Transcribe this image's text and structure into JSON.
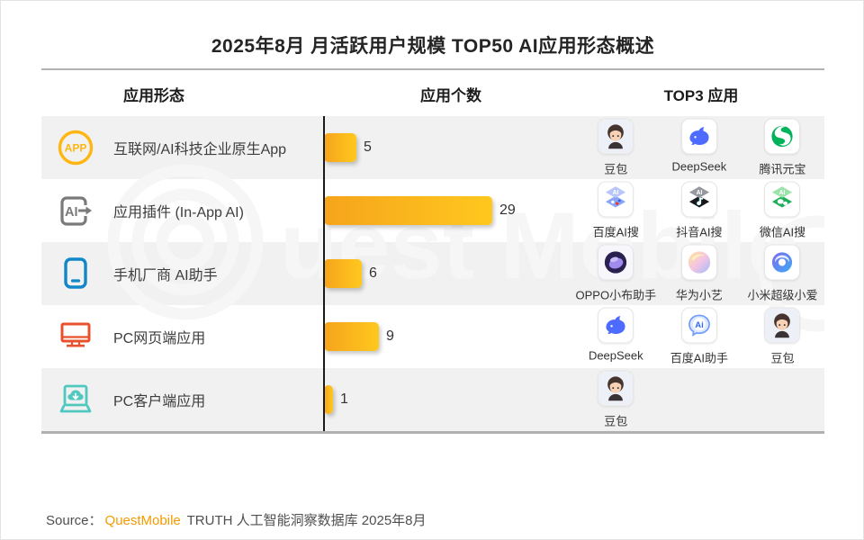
{
  "page": {
    "title": "2025年8月 月活跃用户规模 TOP50 AI应用形态概述",
    "source_prefix": "Source：",
    "source_brand": "QuestMobile",
    "source_suffix": " TRUTH 人工智能洞察数据库 2025年8月"
  },
  "colors": {
    "bar_gradient_start": "#F6A41C",
    "bar_gradient_end": "#FFC81E",
    "brand_orange": "#F59A00",
    "row_stripe": "#F1F1F1",
    "divider_black": "#1A1A1A",
    "rule_gray": "#B0B0B0"
  },
  "table": {
    "headers": [
      "应用形态",
      "应用个数",
      "TOP3 应用"
    ],
    "rows": [
      {
        "icon": "app-badge-icon",
        "category": "互联网/AI科技企业原生App",
        "count": 5,
        "top3": [
          {
            "logo": "doubao-logo",
            "name": "豆包"
          },
          {
            "logo": "deepseek-logo",
            "name": "DeepSeek"
          },
          {
            "logo": "tencent-yuanbao-logo",
            "name": "腾讯元宝"
          }
        ]
      },
      {
        "icon": "in-app-ai-icon",
        "category": "应用插件 (In-App AI)",
        "count": 29,
        "top3": [
          {
            "logo": "baidu-ai-search-logo",
            "name": "百度AI搜"
          },
          {
            "logo": "douyin-ai-search-logo",
            "name": "抖音AI搜"
          },
          {
            "logo": "wechat-ai-search-logo",
            "name": "微信AI搜"
          }
        ]
      },
      {
        "icon": "phone-icon",
        "category": "手机厂商 AI助手",
        "count": 6,
        "top3": [
          {
            "logo": "oppo-xiaobu-logo",
            "name": "OPPO小布助手"
          },
          {
            "logo": "huawei-xiaoyi-logo",
            "name": "华为小艺"
          },
          {
            "logo": "xiaomi-xiaoai-logo",
            "name": "小米超级小爱"
          }
        ]
      },
      {
        "icon": "monitor-icon",
        "category": "PC网页端应用",
        "count": 9,
        "top3": [
          {
            "logo": "deepseek-logo",
            "name": "DeepSeek"
          },
          {
            "logo": "baidu-ai-assistant-logo",
            "name": "百度AI助手"
          },
          {
            "logo": "doubao-logo",
            "name": "豆包"
          }
        ]
      },
      {
        "icon": "laptop-cloud-icon",
        "category": "PC客户端应用",
        "count": 1,
        "top3": [
          {
            "logo": "doubao-logo",
            "name": "豆包"
          }
        ]
      }
    ]
  },
  "chart_data": {
    "type": "bar",
    "orientation": "horizontal",
    "title": "2025年8月 月活跃用户规模 TOP50 AI应用形态概述",
    "categories": [
      "互联网/AI科技企业原生App",
      "应用插件 (In-App AI)",
      "手机厂商 AI助手",
      "PC网页端应用",
      "PC客户端应用"
    ],
    "values": [
      5,
      29,
      6,
      9,
      1
    ],
    "xlabel": "应用个数",
    "ylabel": "应用形态",
    "xlim": [
      0,
      29
    ],
    "grid": false,
    "legend": false,
    "data_labels": [
      5,
      29,
      6,
      9,
      1
    ],
    "top3_by_category": {
      "互联网/AI科技企业原生App": [
        "豆包",
        "DeepSeek",
        "腾讯元宝"
      ],
      "应用插件 (In-App AI)": [
        "百度AI搜",
        "抖音AI搜",
        "微信AI搜"
      ],
      "手机厂商 AI助手": [
        "OPPO小布助手",
        "华为小艺",
        "小米超级小爱"
      ],
      "PC网页端应用": [
        "DeepSeek",
        "百度AI助手",
        "豆包"
      ],
      "PC客户端应用": [
        "豆包"
      ]
    },
    "source": "Source：QuestMobile TRUTH 人工智能洞察数据库 2025年8月"
  }
}
